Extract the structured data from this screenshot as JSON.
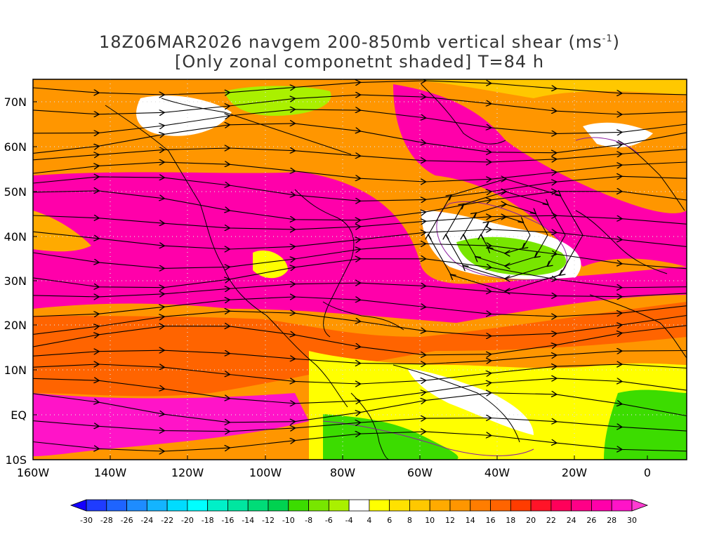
{
  "title": {
    "line1_prefix": "18Z06MAR2026 navgem 200-850mb vertical shear (ms",
    "line1_sup": "-1",
    "line1_suffix": ")",
    "line2": "[Only zonal componetnt shaded] T=84 h"
  },
  "lat_labels": [
    "70N",
    "60N",
    "50N",
    "40N",
    "30N",
    "20N",
    "10N",
    "EQ",
    "10S"
  ],
  "lon_labels": [
    "160W",
    "140W",
    "120W",
    "100W",
    "80W",
    "60W",
    "40W",
    "20W",
    "0"
  ],
  "colorbar": {
    "labels": [
      "-30",
      "-28",
      "-26",
      "-24",
      "-22",
      "-20",
      "-18",
      "-16",
      "-14",
      "-12",
      "-10",
      "-8",
      "-6",
      "-4",
      "4",
      "6",
      "8",
      "10",
      "12",
      "14",
      "16",
      "18",
      "20",
      "22",
      "24",
      "26",
      "28",
      "30"
    ],
    "colors": [
      "#1400ff",
      "#1f3cff",
      "#1e64ff",
      "#1e8cff",
      "#14b4ff",
      "#00dcff",
      "#00ffff",
      "#00f0c8",
      "#00e6a0",
      "#00dc78",
      "#00d250",
      "#3cdc00",
      "#78e600",
      "#aaf000",
      "#ffffff",
      "#ffff00",
      "#ffe100",
      "#ffc800",
      "#ffaa00",
      "#ff9600",
      "#ff7d00",
      "#ff6400",
      "#ff3c00",
      "#ff1428",
      "#ff005a",
      "#ff0087",
      "#ff00aa",
      "#ff14c8",
      "#ff3cd2"
    ]
  },
  "map": {
    "colors": {
      "ocean_base": "#ffffff",
      "coast": "#000000",
      "streamline": "#000000",
      "contour": "#8c1ea0",
      "grid": "#d0d0d0"
    }
  }
}
